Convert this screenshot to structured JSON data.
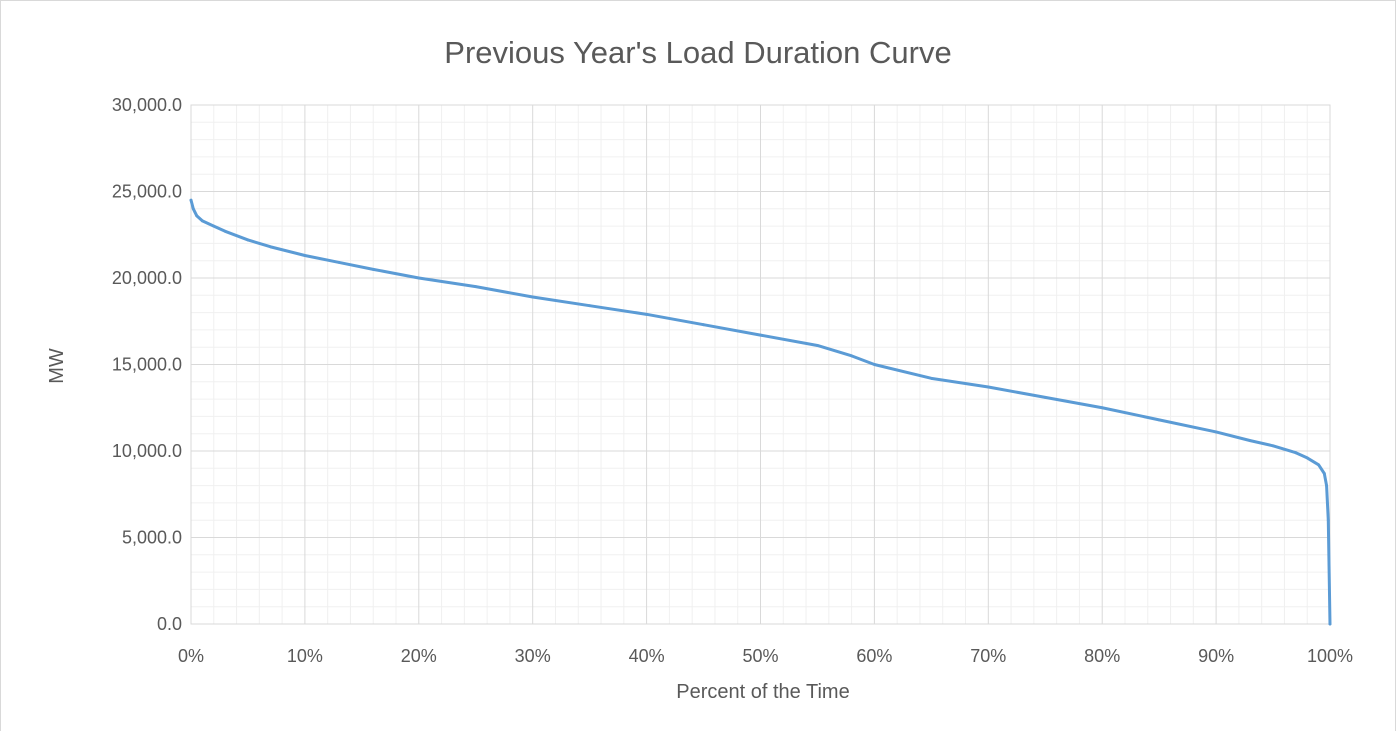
{
  "chart_data": {
    "type": "line",
    "title": "Previous Year's Load Duration Curve",
    "xlabel": "Percent of the Time",
    "ylabel": "MW",
    "xlim": [
      0,
      100
    ],
    "ylim": [
      0,
      30000
    ],
    "x_ticks": [
      "0%",
      "10%",
      "20%",
      "30%",
      "40%",
      "50%",
      "60%",
      "70%",
      "80%",
      "90%",
      "100%"
    ],
    "y_ticks": [
      "0.0",
      "5,000.0",
      "10,000.0",
      "15,000.0",
      "20,000.0",
      "25,000.0",
      "30,000.0"
    ],
    "grid": true,
    "minor_grid": true,
    "legend": "none",
    "series": [
      {
        "color": "#5b9bd5",
        "x": [
          0,
          0.2,
          0.5,
          1,
          2,
          3,
          5,
          7,
          10,
          13,
          16,
          20,
          25,
          30,
          35,
          40,
          45,
          50,
          55,
          58,
          60,
          65,
          70,
          75,
          80,
          85,
          90,
          93,
          95,
          97,
          98,
          99,
          99.5,
          99.7,
          99.85,
          100
        ],
        "y": [
          24500,
          24000,
          23600,
          23300,
          23000,
          22700,
          22200,
          21800,
          21300,
          20900,
          20500,
          20000,
          19500,
          18900,
          18400,
          17900,
          17300,
          16700,
          16100,
          15500,
          15000,
          14200,
          13700,
          13100,
          12500,
          11800,
          11100,
          10600,
          10300,
          9900,
          9600,
          9200,
          8700,
          8000,
          6000,
          0
        ]
      }
    ]
  }
}
